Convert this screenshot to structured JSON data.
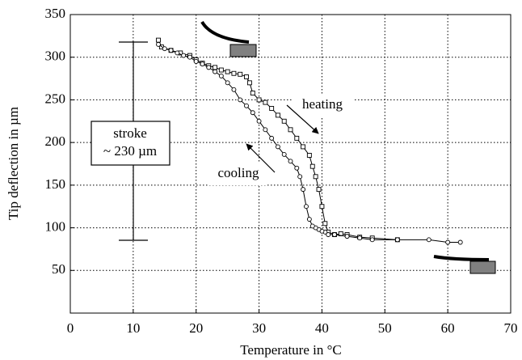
{
  "chart_data": {
    "type": "line",
    "x_label": "Temperature in °C",
    "y_label": "Tip deflection in µm",
    "xlim": [
      0,
      70
    ],
    "xticks": [
      0,
      10,
      20,
      30,
      40,
      50,
      60,
      70
    ],
    "ylim": [
      0,
      350
    ],
    "yticks": [
      50,
      100,
      150,
      200,
      250,
      300,
      350
    ],
    "grid": true,
    "annotations": [
      "heating",
      "cooling",
      "stroke",
      "~ 230 µm"
    ],
    "series": [
      {
        "color": "#000000",
        "marker": "square",
        "x": [
          14,
          14.5,
          16,
          17.5,
          19,
          20,
          21,
          22,
          23,
          24,
          25,
          26,
          27,
          28,
          28.5,
          29,
          30,
          31,
          32,
          33,
          34,
          35,
          36,
          37,
          38,
          38.5,
          39,
          39.5,
          40,
          40.5,
          41,
          42,
          43,
          44,
          46,
          48,
          52
        ],
        "values": [
          320,
          312,
          308,
          305,
          302,
          297,
          293,
          290,
          288,
          285,
          283,
          281,
          280,
          277,
          270,
          258,
          250,
          247,
          240,
          232,
          225,
          215,
          205,
          195,
          185,
          172,
          160,
          145,
          125,
          105,
          95,
          92,
          93,
          92,
          89,
          88,
          86
        ]
      },
      {
        "color": "#000000",
        "marker": "circle",
        "x": [
          62,
          60,
          57,
          52,
          48,
          46,
          44,
          42,
          41,
          40.5,
          40,
          39.5,
          39,
          38.5,
          38,
          37.5,
          37,
          36.5,
          36,
          35,
          34,
          33,
          32,
          31,
          30,
          29,
          28,
          27,
          26,
          25,
          24,
          23,
          22,
          21,
          20,
          19,
          18,
          17,
          16,
          15,
          14
        ],
        "values": [
          83,
          83,
          86,
          86,
          86,
          88,
          90,
          92,
          92,
          95,
          96,
          98,
          100,
          102,
          110,
          125,
          145,
          160,
          170,
          178,
          186,
          195,
          205,
          215,
          225,
          235,
          243,
          250,
          262,
          270,
          278,
          283,
          288,
          292,
          295,
          300,
          302,
          305,
          308,
          310,
          315
        ]
      }
    ]
  }
}
